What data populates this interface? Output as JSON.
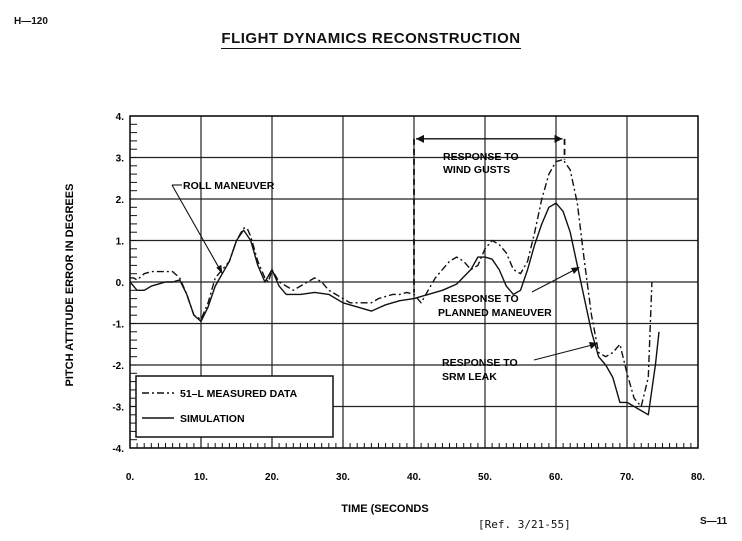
{
  "doc_id": "H—120",
  "title": "FLIGHT DYNAMICS RECONSTRUCTION",
  "reference": "[Ref. 3/21-55]",
  "page_number": "S—11",
  "chart_data": {
    "type": "line",
    "title": "FLIGHT DYNAMICS RECONSTRUCTION",
    "xlabel": "TIME (SECONDS",
    "ylabel": "PITCH ATTITUDE ERROR IN DEGREES",
    "xlim": [
      0,
      80
    ],
    "ylim": [
      -4,
      4
    ],
    "x_ticks": [
      0,
      10,
      20,
      30,
      40,
      50,
      60,
      70,
      80
    ],
    "x_tick_labels": [
      "0.",
      "10.",
      "20.",
      "30.",
      "40.",
      "50.",
      "60.",
      "70.",
      "80."
    ],
    "y_ticks": [
      4,
      3,
      2,
      1,
      0,
      -1,
      -2,
      -3,
      -4
    ],
    "y_tick_labels": [
      "4.",
      "3.",
      "2.",
      "1.",
      "0.",
      "-1.",
      "-2.",
      "-3.",
      "-4."
    ],
    "grid": true,
    "legend_position": "bottom-left",
    "series": [
      {
        "name": "51–L MEASURED DATA",
        "style": "dash-dot",
        "points": [
          [
            0,
            0.1
          ],
          [
            0.5,
            0.1
          ],
          [
            1,
            0.05
          ],
          [
            2,
            0.2
          ],
          [
            3,
            0.25
          ],
          [
            4,
            0.25
          ],
          [
            5,
            0.25
          ],
          [
            6,
            0.25
          ],
          [
            7,
            0.1
          ],
          [
            8,
            -0.3
          ],
          [
            9,
            -0.8
          ],
          [
            10,
            -0.9
          ],
          [
            11,
            -0.5
          ],
          [
            12,
            0.1
          ],
          [
            13,
            0.3
          ],
          [
            14,
            0.5
          ],
          [
            15,
            1.0
          ],
          [
            16,
            1.3
          ],
          [
            16.5,
            1.3
          ],
          [
            17,
            1.1
          ],
          [
            18,
            0.5
          ],
          [
            19,
            0.1
          ],
          [
            19.5,
            0.0
          ],
          [
            20,
            0.3
          ],
          [
            21,
            0.0
          ],
          [
            22,
            -0.1
          ],
          [
            23,
            -0.2
          ],
          [
            24,
            -0.1
          ],
          [
            25,
            0.0
          ],
          [
            26,
            0.1
          ],
          [
            27,
            0.0
          ],
          [
            28,
            -0.2
          ],
          [
            29,
            -0.3
          ],
          [
            30,
            -0.4
          ],
          [
            31,
            -0.5
          ],
          [
            32,
            -0.5
          ],
          [
            33,
            -0.5
          ],
          [
            34,
            -0.5
          ],
          [
            35,
            -0.4
          ],
          [
            36,
            -0.35
          ],
          [
            37,
            -0.3
          ],
          [
            38,
            -0.3
          ],
          [
            39,
            -0.25
          ],
          [
            40,
            -0.3
          ],
          [
            41,
            -0.5
          ],
          [
            42,
            -0.2
          ],
          [
            43,
            0.1
          ],
          [
            44,
            0.3
          ],
          [
            45,
            0.5
          ],
          [
            46,
            0.6
          ],
          [
            47,
            0.5
          ],
          [
            48,
            0.3
          ],
          [
            49,
            0.4
          ],
          [
            50,
            0.8
          ],
          [
            51,
            1.0
          ],
          [
            52,
            0.9
          ],
          [
            53,
            0.7
          ],
          [
            54,
            0.3
          ],
          [
            55,
            0.2
          ],
          [
            56,
            0.5
          ],
          [
            57,
            1.2
          ],
          [
            58,
            2.0
          ],
          [
            59,
            2.6
          ],
          [
            60,
            2.9
          ],
          [
            61,
            2.95
          ],
          [
            62,
            2.7
          ],
          [
            63,
            1.9
          ],
          [
            64,
            0.5
          ],
          [
            65,
            -0.8
          ],
          [
            66,
            -1.7
          ],
          [
            67,
            -1.8
          ],
          [
            68,
            -1.7
          ],
          [
            69,
            -1.5
          ],
          [
            70,
            -2.2
          ],
          [
            71,
            -2.8
          ],
          [
            72,
            -3.0
          ],
          [
            73,
            -2.3
          ],
          [
            73.5,
            0.0
          ]
        ]
      },
      {
        "name": "SIMULATION",
        "style": "solid",
        "points": [
          [
            0,
            0.0
          ],
          [
            1,
            -0.2
          ],
          [
            2,
            -0.2
          ],
          [
            3,
            -0.1
          ],
          [
            4,
            -0.05
          ],
          [
            5,
            0.0
          ],
          [
            6,
            0.0
          ],
          [
            7,
            0.05
          ],
          [
            8,
            -0.3
          ],
          [
            9,
            -0.8
          ],
          [
            10,
            -0.95
          ],
          [
            11,
            -0.6
          ],
          [
            12,
            -0.1
          ],
          [
            13,
            0.2
          ],
          [
            14,
            0.5
          ],
          [
            15,
            1.0
          ],
          [
            16,
            1.25
          ],
          [
            17,
            1.0
          ],
          [
            18,
            0.4
          ],
          [
            19,
            0.0
          ],
          [
            20,
            0.3
          ],
          [
            21,
            -0.1
          ],
          [
            22,
            -0.3
          ],
          [
            24,
            -0.3
          ],
          [
            26,
            -0.25
          ],
          [
            28,
            -0.3
          ],
          [
            30,
            -0.5
          ],
          [
            32,
            -0.6
          ],
          [
            34,
            -0.7
          ],
          [
            36,
            -0.55
          ],
          [
            38,
            -0.45
          ],
          [
            40,
            -0.4
          ],
          [
            42,
            -0.3
          ],
          [
            44,
            -0.2
          ],
          [
            46,
            -0.05
          ],
          [
            48,
            0.3
          ],
          [
            49,
            0.6
          ],
          [
            50,
            0.6
          ],
          [
            51,
            0.55
          ],
          [
            52,
            0.3
          ],
          [
            53,
            -0.1
          ],
          [
            54,
            -0.3
          ],
          [
            55,
            -0.2
          ],
          [
            56,
            0.3
          ],
          [
            57,
            0.9
          ],
          [
            58,
            1.4
          ],
          [
            59,
            1.8
          ],
          [
            60,
            1.9
          ],
          [
            61,
            1.7
          ],
          [
            62,
            1.2
          ],
          [
            63,
            0.4
          ],
          [
            64,
            -0.4
          ],
          [
            65,
            -1.2
          ],
          [
            66,
            -1.8
          ],
          [
            67,
            -2.0
          ],
          [
            68,
            -2.3
          ],
          [
            69,
            -2.9
          ],
          [
            70,
            -2.9
          ],
          [
            71,
            -3.0
          ],
          [
            72,
            -3.1
          ],
          [
            73,
            -3.2
          ],
          [
            74,
            -2.0
          ],
          [
            74.5,
            -1.2
          ]
        ]
      }
    ],
    "annotations": {
      "roll_maneuver": "ROLL MANEUVER",
      "wind_gusts_line1": "RESPONSE TO",
      "wind_gusts_line2": "WIND GUSTS",
      "planned_line1": "RESPONSE TO",
      "planned_line2": "PLANNED MANEUVER",
      "srm_line1": "RESPONSE TO",
      "srm_line2": "SRM LEAK"
    }
  }
}
